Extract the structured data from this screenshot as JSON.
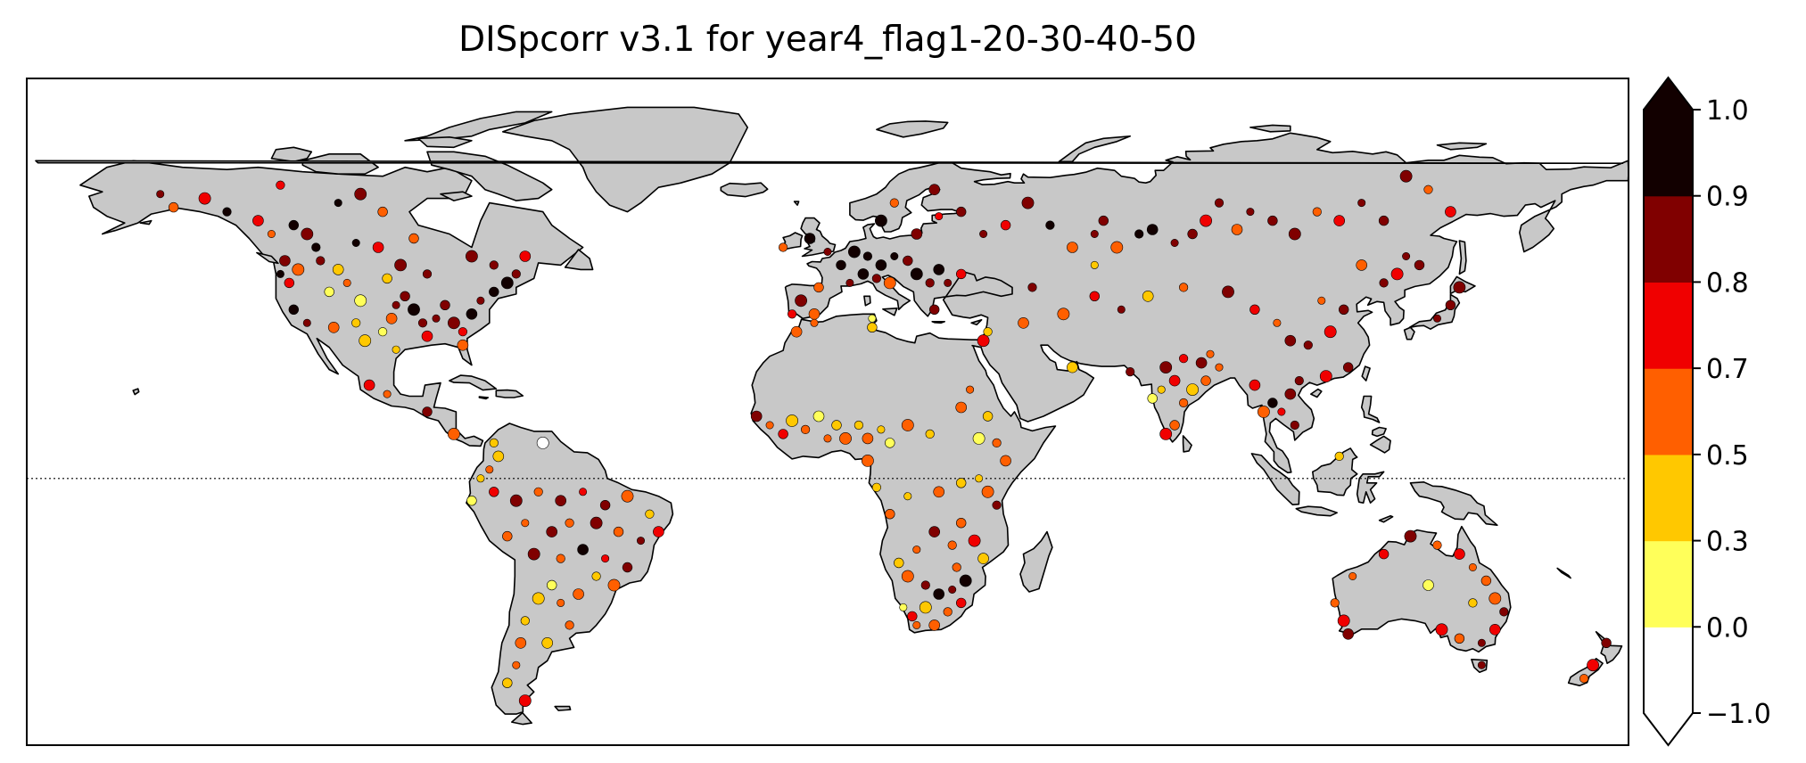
{
  "title": "DISpcorr v3.1 for year4_flag1-20-30-40-50",
  "colors": {
    "ocean": "#ffffff",
    "land": "#c8c8c8",
    "coastline": "#000000",
    "frame": "#000000",
    "equator": "#000000"
  },
  "colorbar": {
    "ticks": [
      "1.0",
      "0.9",
      "0.8",
      "0.7",
      "0.5",
      "0.3",
      "0.0",
      "−1.0"
    ],
    "bins": [
      {
        "from": -1.0,
        "to": 0.0,
        "color": "#ffffff"
      },
      {
        "from": 0.0,
        "to": 0.3,
        "color": "#ffff5a"
      },
      {
        "from": 0.3,
        "to": 0.5,
        "color": "#ffc800"
      },
      {
        "from": 0.5,
        "to": 0.7,
        "color": "#ff5f00"
      },
      {
        "from": 0.7,
        "to": 0.8,
        "color": "#f00000"
      },
      {
        "from": 0.8,
        "to": 0.9,
        "color": "#800000"
      },
      {
        "from": 0.9,
        "to": 1.0,
        "color": "#120000"
      }
    ],
    "extend": "both"
  },
  "map": {
    "projection": "plate-carree",
    "lon_range": [
      -180,
      180
    ],
    "lat_range": [
      -60,
      90
    ],
    "equator_line": "dotted"
  },
  "stations": [
    {
      "lon": -150,
      "lat": 64,
      "v": 0.85
    },
    {
      "lon": -147,
      "lat": 61,
      "v": 0.6
    },
    {
      "lon": -140,
      "lat": 63,
      "v": 0.72
    },
    {
      "lon": -135,
      "lat": 60,
      "v": 0.95
    },
    {
      "lon": -128,
      "lat": 58,
      "v": 0.75
    },
    {
      "lon": -125,
      "lat": 55,
      "v": 0.6
    },
    {
      "lon": -120,
      "lat": 57,
      "v": 0.92
    },
    {
      "lon": -117,
      "lat": 55,
      "v": 0.85
    },
    {
      "lon": -115,
      "lat": 52,
      "v": 0.95
    },
    {
      "lon": -122,
      "lat": 49,
      "v": 0.82
    },
    {
      "lon": -123,
      "lat": 46,
      "v": 0.9
    },
    {
      "lon": -121,
      "lat": 44,
      "v": 0.75
    },
    {
      "lon": -119,
      "lat": 47,
      "v": 0.6
    },
    {
      "lon": -114,
      "lat": 49,
      "v": 0.88
    },
    {
      "lon": -110,
      "lat": 47,
      "v": 0.4
    },
    {
      "lon": -108,
      "lat": 44,
      "v": 0.65
    },
    {
      "lon": -112,
      "lat": 42,
      "v": 0.2
    },
    {
      "lon": -105,
      "lat": 40,
      "v": 0.1
    },
    {
      "lon": -106,
      "lat": 35,
      "v": 0.35
    },
    {
      "lon": -111,
      "lat": 34,
      "v": 0.6
    },
    {
      "lon": -117,
      "lat": 35,
      "v": 0.82
    },
    {
      "lon": -120,
      "lat": 38,
      "v": 0.9
    },
    {
      "lon": -104,
      "lat": 31,
      "v": 0.4
    },
    {
      "lon": -100,
      "lat": 33,
      "v": 0.25
    },
    {
      "lon": -98,
      "lat": 36,
      "v": 0.55
    },
    {
      "lon": -97,
      "lat": 39,
      "v": 0.85
    },
    {
      "lon": -95,
      "lat": 41,
      "v": 0.88
    },
    {
      "lon": -93,
      "lat": 38,
      "v": 0.9
    },
    {
      "lon": -91,
      "lat": 35,
      "v": 0.8
    },
    {
      "lon": -90,
      "lat": 32,
      "v": 0.7
    },
    {
      "lon": -88,
      "lat": 36,
      "v": 0.85
    },
    {
      "lon": -86,
      "lat": 39,
      "v": 0.88
    },
    {
      "lon": -84,
      "lat": 35,
      "v": 0.82
    },
    {
      "lon": -82,
      "lat": 33,
      "v": 0.75
    },
    {
      "lon": -80,
      "lat": 37,
      "v": 0.9
    },
    {
      "lon": -78,
      "lat": 40,
      "v": 0.85
    },
    {
      "lon": -75,
      "lat": 42,
      "v": 0.92
    },
    {
      "lon": -72,
      "lat": 44,
      "v": 0.95
    },
    {
      "lon": -70,
      "lat": 46,
      "v": 0.88
    },
    {
      "lon": -82,
      "lat": 30,
      "v": 0.6
    },
    {
      "lon": -97,
      "lat": 29,
      "v": 0.45
    },
    {
      "lon": -99,
      "lat": 45,
      "v": 0.3
    },
    {
      "lon": -96,
      "lat": 48,
      "v": 0.8
    },
    {
      "lon": -90,
      "lat": 46,
      "v": 0.86
    },
    {
      "lon": -101,
      "lat": 52,
      "v": 0.78
    },
    {
      "lon": -106,
      "lat": 53,
      "v": 0.92
    },
    {
      "lon": -93,
      "lat": 54,
      "v": 0.65
    },
    {
      "lon": -80,
      "lat": 50,
      "v": 0.88
    },
    {
      "lon": -75,
      "lat": 48,
      "v": 0.85
    },
    {
      "lon": -68,
      "lat": 50,
      "v": 0.72
    },
    {
      "lon": -110,
      "lat": 62,
      "v": 0.95
    },
    {
      "lon": -100,
      "lat": 60,
      "v": 0.6
    },
    {
      "lon": -105,
      "lat": 64,
      "v": 0.85
    },
    {
      "lon": -123,
      "lat": 66,
      "v": 0.72
    },
    {
      "lon": -103,
      "lat": 21,
      "v": 0.75
    },
    {
      "lon": -99,
      "lat": 19,
      "v": 0.6
    },
    {
      "lon": -90,
      "lat": 15,
      "v": 0.82
    },
    {
      "lon": -84,
      "lat": 10,
      "v": 0.55
    },
    {
      "lon": -75,
      "lat": 8,
      "v": 0.35
    },
    {
      "lon": -74,
      "lat": 5,
      "v": 0.3
    },
    {
      "lon": -76,
      "lat": 2,
      "v": 0.55
    },
    {
      "lon": -75,
      "lat": -3,
      "v": 0.75
    },
    {
      "lon": -70,
      "lat": -5,
      "v": 0.82
    },
    {
      "lon": -65,
      "lat": -3,
      "v": 0.6
    },
    {
      "lon": -60,
      "lat": -5,
      "v": 0.88
    },
    {
      "lon": -55,
      "lat": -3,
      "v": 0.75
    },
    {
      "lon": -50,
      "lat": -6,
      "v": 0.82
    },
    {
      "lon": -45,
      "lat": -4,
      "v": 0.6
    },
    {
      "lon": -40,
      "lat": -8,
      "v": 0.35
    },
    {
      "lon": -38,
      "lat": -12,
      "v": 0.7
    },
    {
      "lon": -42,
      "lat": -14,
      "v": 0.85
    },
    {
      "lon": -47,
      "lat": -12,
      "v": 0.6
    },
    {
      "lon": -52,
      "lat": -10,
      "v": 0.8
    },
    {
      "lon": -58,
      "lat": -10,
      "v": 0.65
    },
    {
      "lon": -62,
      "lat": -12,
      "v": 0.85
    },
    {
      "lon": -68,
      "lat": -10,
      "v": 0.6
    },
    {
      "lon": -72,
      "lat": -13,
      "v": 0.55
    },
    {
      "lon": -66,
      "lat": -17,
      "v": 0.82
    },
    {
      "lon": -60,
      "lat": -18,
      "v": 0.6
    },
    {
      "lon": -55,
      "lat": -16,
      "v": 0.9
    },
    {
      "lon": -50,
      "lat": -18,
      "v": 0.72
    },
    {
      "lon": -45,
      "lat": -20,
      "v": 0.85
    },
    {
      "lon": -48,
      "lat": -24,
      "v": 0.6
    },
    {
      "lon": -52,
      "lat": -22,
      "v": 0.4
    },
    {
      "lon": -56,
      "lat": -26,
      "v": 0.65
    },
    {
      "lon": -60,
      "lat": -28,
      "v": 0.6
    },
    {
      "lon": -62,
      "lat": -24,
      "v": 0.2
    },
    {
      "lon": -65,
      "lat": -27,
      "v": 0.35
    },
    {
      "lon": -68,
      "lat": -32,
      "v": 0.4
    },
    {
      "lon": -69,
      "lat": -37,
      "v": 0.55
    },
    {
      "lon": -70,
      "lat": -42,
      "v": 0.6
    },
    {
      "lon": -72,
      "lat": -46,
      "v": 0.3
    },
    {
      "lon": -68,
      "lat": -50,
      "v": 0.72
    },
    {
      "lon": -58,
      "lat": -33,
      "v": 0.6
    },
    {
      "lon": -63,
      "lat": -37,
      "v": 0.45
    },
    {
      "lon": -78,
      "lat": 0,
      "v": 0.35
    },
    {
      "lon": -80,
      "lat": -5,
      "v": 0.25
    },
    {
      "lon": -64,
      "lat": 8,
      "v": -0.5
    },
    {
      "lon": -10,
      "lat": 52,
      "v": 0.6
    },
    {
      "lon": -4,
      "lat": 54,
      "v": 0.95
    },
    {
      "lon": 0,
      "lat": 51,
      "v": 0.88
    },
    {
      "lon": 3,
      "lat": 48,
      "v": 0.95
    },
    {
      "lon": 6,
      "lat": 51,
      "v": 0.95
    },
    {
      "lon": 9,
      "lat": 50,
      "v": 0.92
    },
    {
      "lon": 12,
      "lat": 48,
      "v": 0.9
    },
    {
      "lon": 15,
      "lat": 50,
      "v": 0.95
    },
    {
      "lon": 18,
      "lat": 49,
      "v": 0.85
    },
    {
      "lon": 20,
      "lat": 46,
      "v": 0.9
    },
    {
      "lon": 23,
      "lat": 44,
      "v": 0.88
    },
    {
      "lon": 25,
      "lat": 47,
      "v": 0.95
    },
    {
      "lon": 27,
      "lat": 44,
      "v": 0.82
    },
    {
      "lon": 30,
      "lat": 46,
      "v": 0.75
    },
    {
      "lon": 14,
      "lat": 44,
      "v": 0.6
    },
    {
      "lon": 11,
      "lat": 45,
      "v": 0.85
    },
    {
      "lon": 8,
      "lat": 46,
      "v": 0.9
    },
    {
      "lon": 5,
      "lat": 44,
      "v": 0.8
    },
    {
      "lon": -2,
      "lat": 43,
      "v": 0.6
    },
    {
      "lon": -6,
      "lat": 40,
      "v": 0.85
    },
    {
      "lon": -8,
      "lat": 37,
      "v": 0.75
    },
    {
      "lon": -3,
      "lat": 37,
      "v": 0.6
    },
    {
      "lon": 10,
      "lat": 36,
      "v": 0.2
    },
    {
      "lon": 24,
      "lat": 38,
      "v": 0.82
    },
    {
      "lon": 35,
      "lat": 31,
      "v": 0.72
    },
    {
      "lon": 36,
      "lat": 33,
      "v": 0.35
    },
    {
      "lon": 20,
      "lat": 55,
      "v": 0.88
    },
    {
      "lon": 25,
      "lat": 59,
      "v": 0.75
    },
    {
      "lon": 30,
      "lat": 60,
      "v": 0.85
    },
    {
      "lon": 12,
      "lat": 58,
      "v": 0.95
    },
    {
      "lon": 15,
      "lat": 62,
      "v": 0.6
    },
    {
      "lon": 24,
      "lat": 65,
      "v": 0.82
    },
    {
      "lon": 35,
      "lat": 55,
      "v": 0.88
    },
    {
      "lon": 40,
      "lat": 57,
      "v": 0.72
    },
    {
      "lon": 45,
      "lat": 62,
      "v": 0.85
    },
    {
      "lon": 50,
      "lat": 57,
      "v": 0.95
    },
    {
      "lon": 55,
      "lat": 52,
      "v": 0.65
    },
    {
      "lon": 60,
      "lat": 55,
      "v": 0.85
    },
    {
      "lon": 62,
      "lat": 58,
      "v": 0.8
    },
    {
      "lon": 65,
      "lat": 52,
      "v": 0.6
    },
    {
      "lon": 70,
      "lat": 55,
      "v": 0.95
    },
    {
      "lon": 73,
      "lat": 56,
      "v": 0.9
    },
    {
      "lon": 78,
      "lat": 53,
      "v": 0.82
    },
    {
      "lon": 82,
      "lat": 55,
      "v": 0.88
    },
    {
      "lon": 85,
      "lat": 58,
      "v": 0.75
    },
    {
      "lon": 88,
      "lat": 62,
      "v": 0.8
    },
    {
      "lon": 92,
      "lat": 56,
      "v": 0.6
    },
    {
      "lon": 95,
      "lat": 60,
      "v": 0.85
    },
    {
      "lon": 100,
      "lat": 58,
      "v": 0.82
    },
    {
      "lon": 105,
      "lat": 55,
      "v": 0.88
    },
    {
      "lon": 110,
      "lat": 60,
      "v": 0.65
    },
    {
      "lon": 115,
      "lat": 58,
      "v": 0.75
    },
    {
      "lon": 120,
      "lat": 62,
      "v": 0.82
    },
    {
      "lon": 125,
      "lat": 58,
      "v": 0.85
    },
    {
      "lon": 130,
      "lat": 68,
      "v": 0.82
    },
    {
      "lon": 135,
      "lat": 65,
      "v": 0.6
    },
    {
      "lon": 140,
      "lat": 60,
      "v": 0.75
    },
    {
      "lon": 130,
      "lat": 50,
      "v": 0.85
    },
    {
      "lon": 133,
      "lat": 48,
      "v": 0.88
    },
    {
      "lon": 128,
      "lat": 46,
      "v": 0.72
    },
    {
      "lon": 125,
      "lat": 44,
      "v": 0.85
    },
    {
      "lon": 120,
      "lat": 48,
      "v": 0.6
    },
    {
      "lon": 111,
      "lat": 40,
      "v": 0.55
    },
    {
      "lon": 116,
      "lat": 38,
      "v": 0.82
    },
    {
      "lon": 113,
      "lat": 33,
      "v": 0.75
    },
    {
      "lon": 108,
      "lat": 30,
      "v": 0.85
    },
    {
      "lon": 104,
      "lat": 31,
      "v": 0.82
    },
    {
      "lon": 101,
      "lat": 35,
      "v": 0.65
    },
    {
      "lon": 96,
      "lat": 38,
      "v": 0.72
    },
    {
      "lon": 90,
      "lat": 42,
      "v": 0.85
    },
    {
      "lon": 80,
      "lat": 43,
      "v": 0.6
    },
    {
      "lon": 72,
      "lat": 41,
      "v": 0.35
    },
    {
      "lon": 66,
      "lat": 38,
      "v": 0.85
    },
    {
      "lon": 60,
      "lat": 41,
      "v": 0.75
    },
    {
      "lon": 53,
      "lat": 37,
      "v": 0.6
    },
    {
      "lon": 46,
      "lat": 43,
      "v": 0.82
    },
    {
      "lon": 44,
      "lat": 35,
      "v": 0.55
    },
    {
      "lon": 60,
      "lat": 48,
      "v": 0.3
    },
    {
      "lon": 117,
      "lat": 25,
      "v": 0.85
    },
    {
      "lon": 112,
      "lat": 23,
      "v": 0.75
    },
    {
      "lon": 106,
      "lat": 22,
      "v": 0.88
    },
    {
      "lon": 104,
      "lat": 19,
      "v": 0.85
    },
    {
      "lon": 102,
      "lat": 15,
      "v": 0.75
    },
    {
      "lon": 100,
      "lat": 17,
      "v": 0.92
    },
    {
      "lon": 98,
      "lat": 15,
      "v": 0.6
    },
    {
      "lon": 105,
      "lat": 12,
      "v": 0.82
    },
    {
      "lon": 96,
      "lat": 21,
      "v": 0.72
    },
    {
      "lon": 88,
      "lat": 25,
      "v": 0.6
    },
    {
      "lon": 85,
      "lat": 22,
      "v": 0.55
    },
    {
      "lon": 82,
      "lat": 20,
      "v": 0.35
    },
    {
      "lon": 80,
      "lat": 17,
      "v": 0.6
    },
    {
      "lon": 78,
      "lat": 22,
      "v": 0.72
    },
    {
      "lon": 75,
      "lat": 20,
      "v": 0.4
    },
    {
      "lon": 73,
      "lat": 18,
      "v": 0.25
    },
    {
      "lon": 76,
      "lat": 25,
      "v": 0.85
    },
    {
      "lon": 80,
      "lat": 27,
      "v": 0.75
    },
    {
      "lon": 84,
      "lat": 26,
      "v": 0.82
    },
    {
      "lon": 86,
      "lat": 28,
      "v": 0.6
    },
    {
      "lon": 78,
      "lat": 12,
      "v": 0.55
    },
    {
      "lon": 76,
      "lat": 10,
      "v": 0.72
    },
    {
      "lon": 68,
      "lat": 24,
      "v": 0.85
    },
    {
      "lon": 55,
      "lat": 25,
      "v": 0.4
    },
    {
      "lon": 137,
      "lat": 36,
      "v": 0.82
    },
    {
      "lon": 140,
      "lat": 39,
      "v": 0.88
    },
    {
      "lon": 142,
      "lat": 43,
      "v": 0.85
    },
    {
      "lon": 115,
      "lat": 5,
      "v": 0.35
    },
    {
      "lon": -16,
      "lat": 14,
      "v": 0.85
    },
    {
      "lon": -13,
      "lat": 12,
      "v": 0.6
    },
    {
      "lon": -10,
      "lat": 10,
      "v": 0.75
    },
    {
      "lon": -8,
      "lat": 13,
      "v": 0.4
    },
    {
      "lon": -5,
      "lat": 11,
      "v": 0.65
    },
    {
      "lon": -2,
      "lat": 14,
      "v": 0.25
    },
    {
      "lon": 0,
      "lat": 9,
      "v": 0.6
    },
    {
      "lon": 2,
      "lat": 12,
      "v": 0.3
    },
    {
      "lon": 4,
      "lat": 9,
      "v": 0.6
    },
    {
      "lon": 7,
      "lat": 12,
      "v": 0.35
    },
    {
      "lon": 9,
      "lat": 9,
      "v": 0.55
    },
    {
      "lon": 12,
      "lat": 11,
      "v": 0.4
    },
    {
      "lon": 14,
      "lat": 8,
      "v": 0.2
    },
    {
      "lon": 18,
      "lat": 12,
      "v": 0.6
    },
    {
      "lon": 23,
      "lat": 10,
      "v": 0.4
    },
    {
      "lon": 30,
      "lat": 16,
      "v": 0.65
    },
    {
      "lon": 32,
      "lat": 20,
      "v": 0.6
    },
    {
      "lon": 36,
      "lat": 14,
      "v": 0.3
    },
    {
      "lon": 34,
      "lat": 9,
      "v": 0.25
    },
    {
      "lon": 38,
      "lat": 8,
      "v": 0.55
    },
    {
      "lon": 40,
      "lat": 4,
      "v": 0.6
    },
    {
      "lon": 34,
      "lat": 0,
      "v": 0.4
    },
    {
      "lon": 30,
      "lat": -1,
      "v": 0.35
    },
    {
      "lon": 36,
      "lat": -3,
      "v": 0.6
    },
    {
      "lon": 38,
      "lat": -6,
      "v": 0.85
    },
    {
      "lon": 25,
      "lat": -3,
      "v": 0.55
    },
    {
      "lon": 18,
      "lat": -4,
      "v": 0.45
    },
    {
      "lon": 30,
      "lat": -10,
      "v": 0.6
    },
    {
      "lon": 33,
      "lat": -14,
      "v": 0.75
    },
    {
      "lon": 28,
      "lat": -15,
      "v": 0.65
    },
    {
      "lon": 24,
      "lat": -12,
      "v": 0.82
    },
    {
      "lon": 20,
      "lat": -16,
      "v": 0.6
    },
    {
      "lon": 16,
      "lat": -19,
      "v": 0.3
    },
    {
      "lon": 18,
      "lat": -22,
      "v": 0.55
    },
    {
      "lon": 22,
      "lat": -24,
      "v": 0.85
    },
    {
      "lon": 25,
      "lat": -26,
      "v": 0.9
    },
    {
      "lon": 28,
      "lat": -25,
      "v": 0.82
    },
    {
      "lon": 30,
      "lat": -28,
      "v": 0.72
    },
    {
      "lon": 31,
      "lat": -23,
      "v": 0.95
    },
    {
      "lon": 27,
      "lat": -30,
      "v": 0.6
    },
    {
      "lon": 24,
      "lat": -33,
      "v": 0.65
    },
    {
      "lon": 20,
      "lat": -33,
      "v": 0.6
    },
    {
      "lon": 19,
      "lat": -31,
      "v": 0.75
    },
    {
      "lon": 22,
      "lat": -29,
      "v": 0.4
    },
    {
      "lon": 29,
      "lat": -20,
      "v": 0.6
    },
    {
      "lon": 35,
      "lat": -18,
      "v": 0.35
    },
    {
      "lon": 17,
      "lat": -29,
      "v": 0.2
    },
    {
      "lon": 14,
      "lat": -8,
      "v": 0.6
    },
    {
      "lon": 9,
      "lat": 4,
      "v": 0.5
    },
    {
      "lon": 11,
      "lat": -2,
      "v": 0.35
    },
    {
      "lon": -7,
      "lat": 33,
      "v": 0.6
    },
    {
      "lon": -3,
      "lat": 35,
      "v": 0.55
    },
    {
      "lon": 10,
      "lat": 34,
      "v": 0.3
    },
    {
      "lon": 116,
      "lat": -32,
      "v": 0.72
    },
    {
      "lon": 114,
      "lat": -28,
      "v": 0.6
    },
    {
      "lon": 117,
      "lat": -35,
      "v": 0.85
    },
    {
      "lon": 118,
      "lat": -22,
      "v": 0.65
    },
    {
      "lon": 125,
      "lat": -17,
      "v": 0.75
    },
    {
      "lon": 131,
      "lat": -13,
      "v": 0.82
    },
    {
      "lon": 137,
      "lat": -15,
      "v": 0.6
    },
    {
      "lon": 142,
      "lat": -17,
      "v": 0.72
    },
    {
      "lon": 145,
      "lat": -20,
      "v": 0.65
    },
    {
      "lon": 148,
      "lat": -23,
      "v": 0.6
    },
    {
      "lon": 150,
      "lat": -27,
      "v": 0.55
    },
    {
      "lon": 152,
      "lat": -30,
      "v": 0.82
    },
    {
      "lon": 150,
      "lat": -34,
      "v": 0.75
    },
    {
      "lon": 147,
      "lat": -37,
      "v": 0.85
    },
    {
      "lon": 142,
      "lat": -36,
      "v": 0.6
    },
    {
      "lon": 138,
      "lat": -34,
      "v": 0.72
    },
    {
      "lon": 145,
      "lat": -28,
      "v": 0.3
    },
    {
      "lon": 135,
      "lat": -24,
      "v": 0.2
    },
    {
      "lon": 147,
      "lat": -42,
      "v": 0.82
    },
    {
      "lon": 175,
      "lat": -37,
      "v": 0.88
    },
    {
      "lon": 172,
      "lat": -42,
      "v": 0.72
    },
    {
      "lon": 170,
      "lat": -45,
      "v": 0.6
    }
  ]
}
